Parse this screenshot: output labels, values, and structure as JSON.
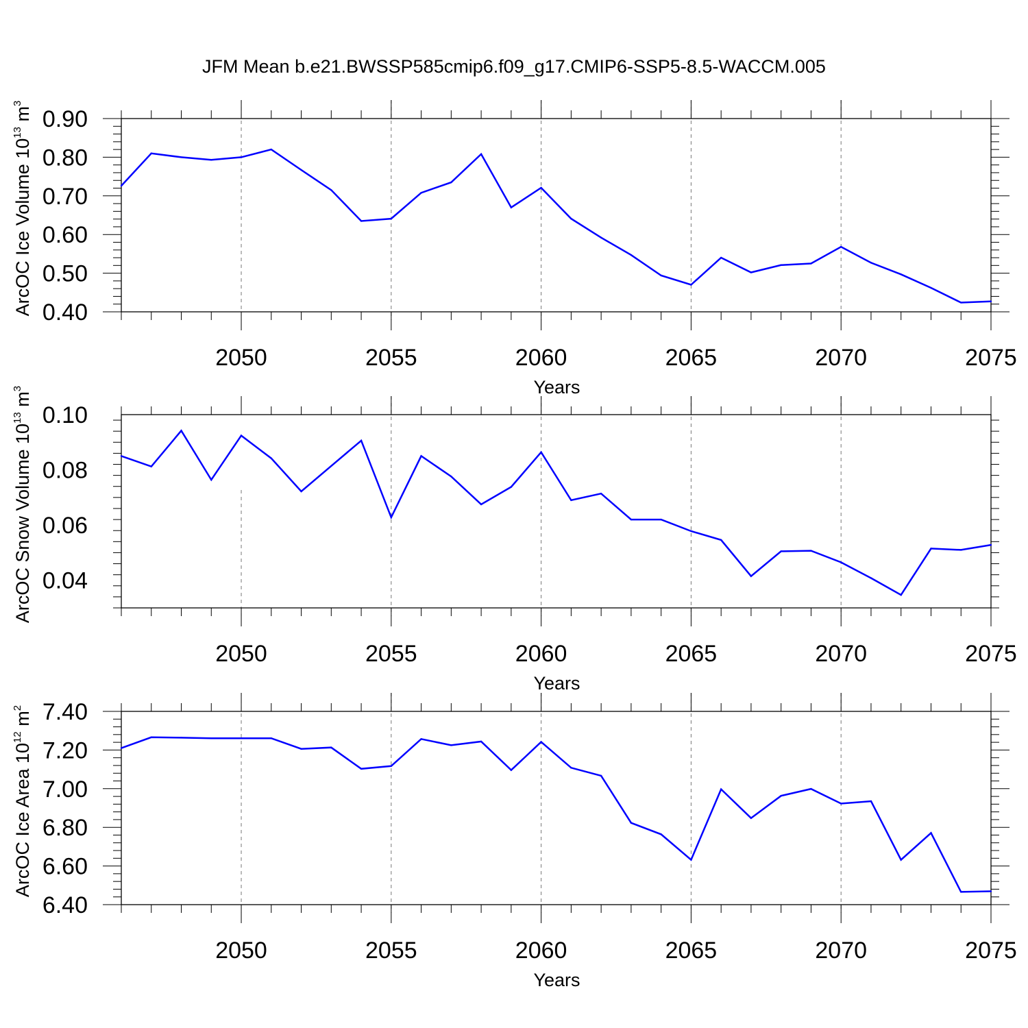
{
  "title": "JFM Mean b.e21.BWSSP585cmip6.f09_g17.CMIP6-SSP5-8.5-WACCM.005",
  "colors": {
    "line": "#0000ff",
    "axis": "#000000",
    "grid": "#777777"
  },
  "chart_data": [
    {
      "type": "line",
      "ylabel_parts": [
        "ArcOC Ice Volume 10",
        "13",
        " m",
        "3"
      ],
      "xlabel": "Years",
      "xlim": [
        2046,
        2075
      ],
      "ylim": [
        0.4,
        0.9
      ],
      "xticks": [
        2050,
        2055,
        2060,
        2065,
        2070,
        2075
      ],
      "yticks": [
        "0.40",
        "0.50",
        "0.60",
        "0.70",
        "0.80",
        "0.90"
      ],
      "x": [
        2046,
        2047,
        2048,
        2049,
        2050,
        2051,
        2052,
        2053,
        2054,
        2055,
        2056,
        2057,
        2058,
        2059,
        2060,
        2061,
        2062,
        2063,
        2064,
        2065,
        2066,
        2067,
        2068,
        2069,
        2070,
        2071,
        2072,
        2073,
        2074,
        2075
      ],
      "series": [
        {
          "values": [
            0.726,
            0.81,
            0.8,
            0.793,
            0.8,
            0.82,
            0.767,
            0.715,
            0.635,
            0.641,
            0.708,
            0.735,
            0.808,
            0.67,
            0.721,
            0.641,
            0.592,
            0.547,
            0.494,
            0.47,
            0.54,
            0.502,
            0.521,
            0.525,
            0.568,
            0.527,
            0.497,
            0.462,
            0.424,
            0.427
          ]
        }
      ],
      "grid_x": [
        2050,
        2055,
        2060,
        2065,
        2070
      ]
    },
    {
      "type": "line",
      "ylabel_parts": [
        "ArcOC Snow Volume 10",
        "13",
        " m",
        "3"
      ],
      "xlabel": "Years",
      "xlim": [
        2046,
        2075
      ],
      "ylim": [
        0.03,
        0.1
      ],
      "xticks": [
        2050,
        2055,
        2060,
        2065,
        2070,
        2075
      ],
      "yticks": [
        "0.04",
        "0.06",
        "0.08",
        "0.10"
      ],
      "ytick_values": [
        0.04,
        0.06,
        0.08,
        0.1
      ],
      "x": [
        2046,
        2047,
        2048,
        2049,
        2050,
        2051,
        2052,
        2053,
        2054,
        2055,
        2056,
        2057,
        2058,
        2059,
        2060,
        2061,
        2062,
        2063,
        2064,
        2065,
        2066,
        2067,
        2068,
        2069,
        2070,
        2071,
        2072,
        2073,
        2074,
        2075
      ],
      "series": [
        {
          "values": [
            0.085,
            0.0812,
            0.0942,
            0.0764,
            0.0924,
            0.0842,
            0.0722,
            0.0814,
            0.0906,
            0.0628,
            0.085,
            0.0776,
            0.0675,
            0.0738,
            0.0864,
            0.069,
            0.0714,
            0.062,
            0.062,
            0.0578,
            0.0546,
            0.0415,
            0.0505,
            0.0507,
            0.0465,
            0.0408,
            0.0347,
            0.0515,
            0.051,
            0.0528
          ]
        }
      ],
      "grid_x": [
        2055,
        2060,
        2065,
        2070
      ],
      "grid_x_partial": [
        2050
      ]
    },
    {
      "type": "line",
      "ylabel_parts": [
        "ArcOC Ice Area 10",
        "12",
        " m",
        "2"
      ],
      "xlabel": "Years",
      "xlim": [
        2046,
        2075
      ],
      "ylim": [
        6.4,
        7.4
      ],
      "xticks": [
        2050,
        2055,
        2060,
        2065,
        2070,
        2075
      ],
      "yticks": [
        "6.40",
        "6.60",
        "6.80",
        "7.00",
        "7.20",
        "7.40"
      ],
      "x": [
        2046,
        2047,
        2048,
        2049,
        2050,
        2051,
        2052,
        2053,
        2054,
        2055,
        2056,
        2057,
        2058,
        2059,
        2060,
        2061,
        2062,
        2063,
        2064,
        2065,
        2066,
        2067,
        2068,
        2069,
        2070,
        2071,
        2072,
        2073,
        2074,
        2075
      ],
      "series": [
        {
          "values": [
            7.21,
            7.266,
            7.264,
            7.261,
            7.261,
            7.261,
            7.206,
            7.213,
            7.103,
            7.117,
            7.257,
            7.225,
            7.244,
            7.096,
            7.242,
            7.108,
            7.067,
            6.823,
            6.764,
            6.632,
            6.997,
            6.848,
            6.963,
            6.999,
            6.923,
            6.935,
            6.632,
            6.771,
            6.466,
            6.469
          ]
        }
      ],
      "grid_x": [
        2050,
        2055,
        2060,
        2065,
        2070
      ]
    }
  ]
}
